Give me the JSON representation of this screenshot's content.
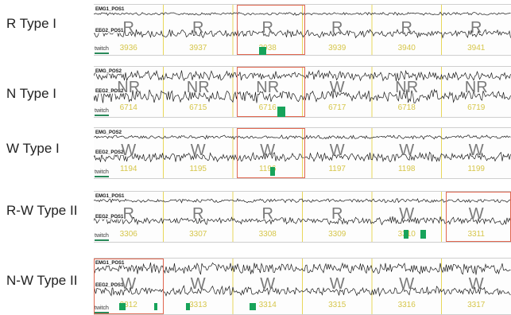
{
  "rows": [
    {
      "label": "R Type I",
      "channels": [
        "EMG1_POS1",
        "EEG2_POS1"
      ],
      "twitch": "twitch",
      "stages": [
        "R",
        "R",
        "R",
        "R",
        "R",
        "R"
      ],
      "epochs": [
        "3936",
        "3937",
        "3938",
        "3939",
        "3940",
        "3941"
      ]
    },
    {
      "label": "N Type I",
      "channels": [
        "EMG_POS2",
        "EEG2_POS2"
      ],
      "twitch": "twitch",
      "stages": [
        "NR",
        "NR",
        "NR",
        "W",
        "NR",
        "NR"
      ],
      "epochs": [
        "6714",
        "6715",
        "6716",
        "6717",
        "6718",
        "6719"
      ]
    },
    {
      "label": "W Type I",
      "channels": [
        "EMG_POS2",
        "EEG2_POS2"
      ],
      "twitch": "twitch",
      "stages": [
        "W",
        "W",
        "W",
        "W",
        "W",
        "W"
      ],
      "epochs": [
        "1194",
        "1195",
        "1196",
        "1197",
        "1198",
        "1199"
      ]
    },
    {
      "label": "R-W Type II",
      "channels": [
        "EMG1_POS1",
        "EEG2_POS1"
      ],
      "twitch": "twitch",
      "stages": [
        "R",
        "R",
        "R",
        "R",
        "W",
        "W"
      ],
      "epochs": [
        "3306",
        "3307",
        "3308",
        "3309",
        "3310",
        "3311"
      ]
    },
    {
      "label": "N-W Type II",
      "channels": [
        "EMG1_POS1",
        "EEG2_POS1"
      ],
      "twitch": "twitch",
      "stages": [
        "W",
        "W",
        "W",
        "W",
        "W",
        "W"
      ],
      "epochs": [
        "3312",
        "3313",
        "3314",
        "3315",
        "3316",
        "3317"
      ]
    }
  ],
  "colors": {
    "highlight_box": "#e0664f",
    "twitch_marker": "#17a35a",
    "epoch_number": "#d6c64a",
    "stage_letter": "#7a7a7a",
    "epoch_divider": "#e8d75a"
  }
}
